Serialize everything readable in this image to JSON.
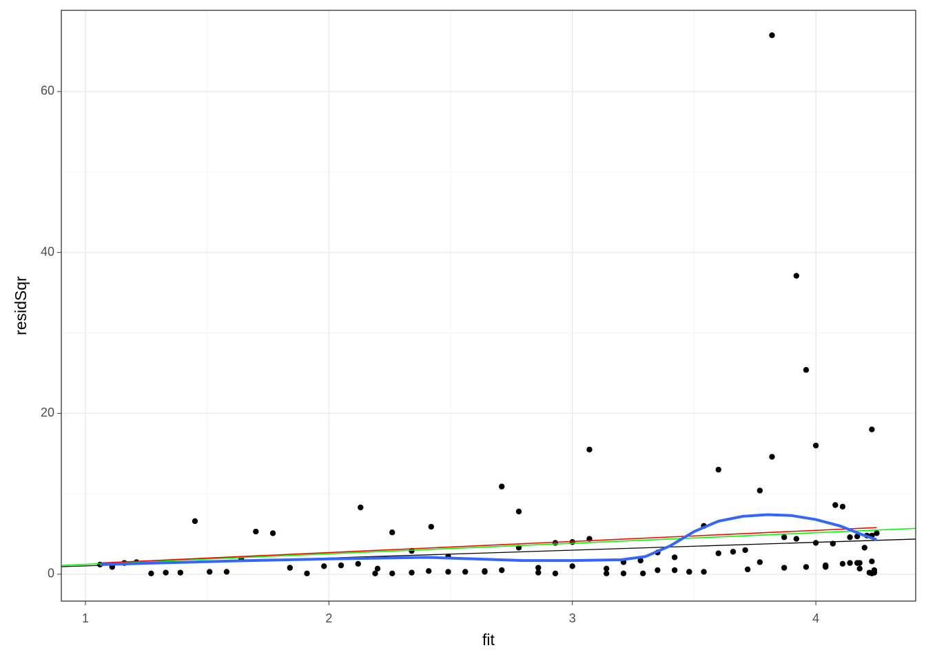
{
  "chart_data": {
    "type": "scatter",
    "xlabel": "fit",
    "ylabel": "residSqr",
    "xlim": [
      0.901,
      4.41
    ],
    "ylim": [
      -3.34,
      70.1
    ],
    "xticks": [
      1,
      2,
      3,
      4
    ],
    "yticks": [
      0,
      20,
      40,
      60
    ],
    "xminor": [
      1.5,
      2.5,
      3.5
    ],
    "yminor": [
      10,
      30,
      50
    ],
    "grid": true,
    "points": {
      "color": "#000000",
      "x": [
        1.06,
        1.11,
        1.16,
        1.21,
        1.27,
        1.33,
        1.39,
        1.45,
        1.51,
        1.58,
        1.64,
        1.7,
        1.77,
        1.84,
        1.91,
        1.98,
        2.05,
        2.12,
        2.13,
        2.19,
        2.2,
        2.26,
        2.26,
        2.34,
        2.34,
        2.41,
        2.42,
        2.49,
        2.49,
        2.56,
        2.64,
        2.64,
        2.71,
        2.71,
        2.78,
        2.78,
        2.86,
        2.86,
        2.93,
        2.93,
        3.0,
        3.0,
        3.07,
        3.07,
        3.14,
        3.14,
        3.21,
        3.21,
        3.28,
        3.29,
        3.35,
        3.35,
        3.42,
        3.42,
        3.48,
        3.48,
        3.54,
        3.54,
        3.6,
        3.6,
        3.66,
        3.71,
        3.72,
        3.77,
        3.77,
        3.82,
        3.82,
        3.87,
        3.87,
        3.92,
        3.92,
        3.96,
        3.96,
        4.0,
        4.0,
        4.04,
        4.04,
        4.07,
        4.08,
        4.11,
        4.11,
        4.14,
        4.14,
        4.17,
        4.17,
        4.18,
        4.18,
        4.2,
        4.21,
        4.22,
        4.23,
        4.23,
        4.23,
        4.23,
        4.24,
        4.25,
        4.24
      ],
      "y": [
        1.2,
        0.9,
        1.4,
        1.5,
        0.1,
        0.2,
        0.2,
        6.6,
        0.3,
        0.3,
        1.9,
        5.3,
        5.1,
        0.8,
        0.1,
        1.0,
        1.1,
        1.3,
        8.3,
        0.1,
        0.7,
        5.2,
        0.1,
        2.9,
        0.2,
        0.4,
        5.9,
        2.2,
        0.3,
        0.3,
        0.4,
        0.3,
        0.5,
        10.9,
        7.8,
        3.3,
        0.2,
        0.8,
        0.1,
        3.9,
        4.0,
        1.0,
        15.5,
        4.4,
        0.7,
        0.1,
        1.5,
        0.1,
        1.7,
        0.1,
        2.7,
        0.5,
        0.5,
        2.1,
        0.3,
        0.3,
        6.0,
        0.3,
        13.0,
        2.6,
        2.8,
        3.0,
        0.6,
        10.4,
        1.5,
        67.0,
        14.6,
        4.6,
        0.8,
        37.1,
        4.4,
        25.4,
        0.9,
        16.0,
        3.9,
        0.9,
        1.1,
        3.8,
        8.6,
        8.4,
        1.3,
        4.6,
        1.4,
        4.7,
        1.4,
        0.7,
        1.4,
        3.3,
        4.8,
        0.2,
        18.0,
        0.1,
        4.8,
        1.6,
        0.5,
        5.1,
        0.2
      ]
    },
    "lines": [
      {
        "color": "#000000",
        "width": 1.3,
        "x": [
          0.901,
          4.41
        ],
        "y": [
          0.94,
          4.37
        ]
      },
      {
        "color": "#00ff00",
        "width": 1.6,
        "x": [
          0.901,
          4.41
        ],
        "y": [
          1.1,
          5.7
        ]
      },
      {
        "color": "#ff0000",
        "width": 1.6,
        "x": [
          1.06,
          4.25
        ],
        "y": [
          1.4,
          5.8
        ]
      },
      {
        "color": "#3366ff",
        "width": 4,
        "x": [
          1.06,
          1.3,
          1.6,
          2.0,
          2.4,
          2.6,
          2.8,
          3.0,
          3.2,
          3.3,
          3.4,
          3.5,
          3.6,
          3.7,
          3.8,
          3.9,
          4.0,
          4.1,
          4.2,
          4.25
        ],
        "y": [
          1.2,
          1.4,
          1.65,
          1.9,
          2.1,
          1.9,
          1.7,
          1.7,
          1.8,
          2.2,
          3.5,
          5.3,
          6.6,
          7.2,
          7.4,
          7.3,
          6.8,
          6.0,
          4.8,
          4.3
        ]
      }
    ]
  }
}
